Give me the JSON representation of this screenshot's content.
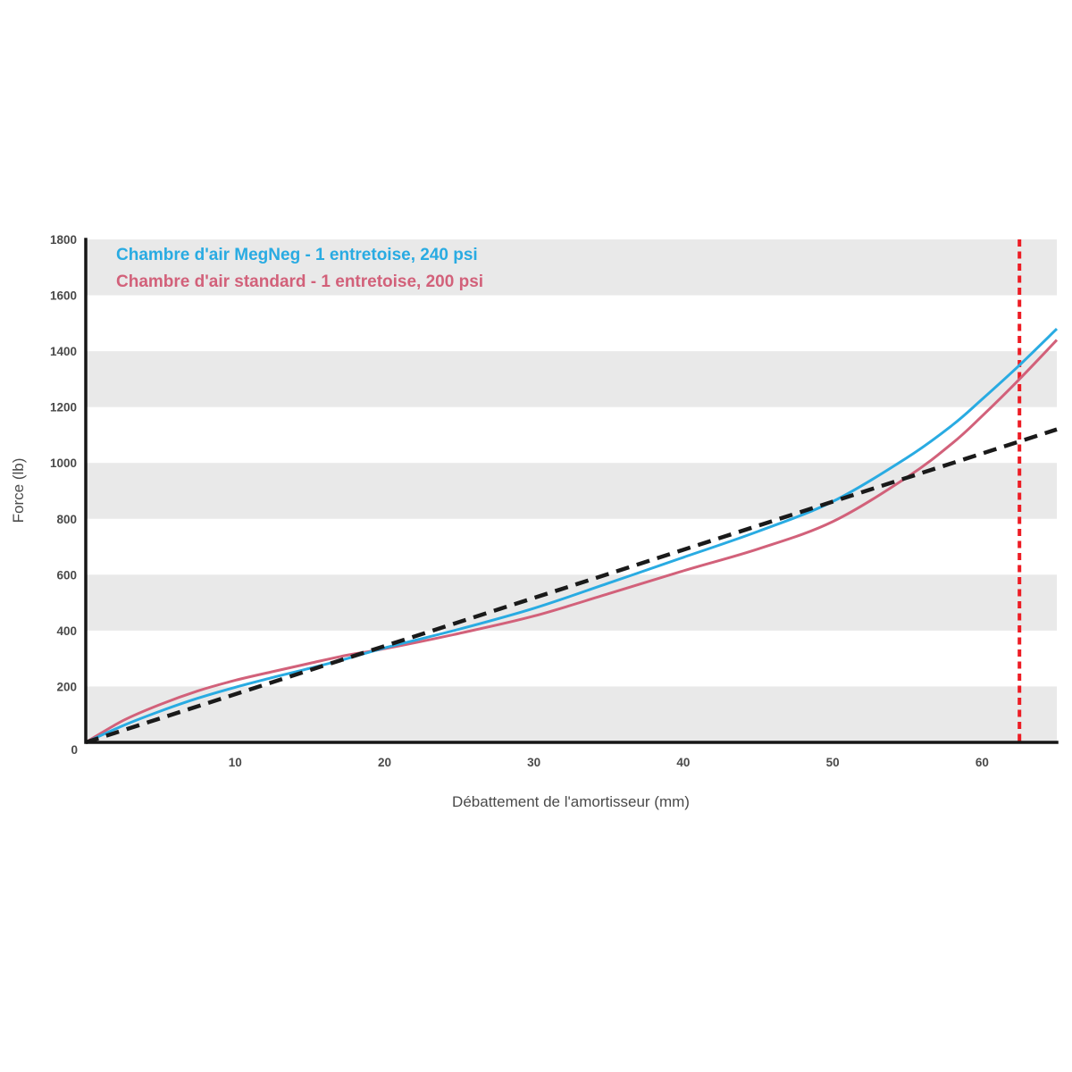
{
  "page": {
    "background": "#ffffff"
  },
  "chart_data": {
    "type": "line",
    "title": "",
    "xlabel": "Débattement de l'amortisseur (mm)",
    "ylabel": "Force (lb)",
    "xlim": [
      0,
      65
    ],
    "ylim": [
      0,
      1800
    ],
    "xticks": [
      10,
      20,
      30,
      40,
      50,
      60
    ],
    "origin_tick_label": "0",
    "yticks": [
      200,
      400,
      600,
      800,
      1000,
      1200,
      1400,
      1600,
      1800
    ],
    "grid": false,
    "legend_position": "top-left-inside",
    "axis_color": "#161616",
    "tick_label_color": "#4a4a4a",
    "background_bands": {
      "color": "#e9e9e9",
      "ranges": [
        [
          0,
          200
        ],
        [
          400,
          600
        ],
        [
          800,
          1000
        ],
        [
          1200,
          1400
        ],
        [
          1600,
          1800
        ]
      ]
    },
    "series": [
      {
        "id": "megneg",
        "name": "Chambre d'air MegNeg - 1 entretoise, 240 psi",
        "color": "#29abe2",
        "style": "solid",
        "width": 3,
        "in_legend": true,
        "z": 2,
        "x": [
          0,
          2.5,
          5,
          7.5,
          10,
          12.5,
          15,
          17.5,
          20,
          25,
          30,
          35,
          40,
          45,
          50,
          55,
          58,
          60,
          62.5,
          65
        ],
        "y": [
          0,
          60,
          112,
          158,
          197,
          232,
          265,
          300,
          338,
          405,
          480,
          570,
          662,
          755,
          862,
          1020,
          1135,
          1228,
          1350,
          1480
        ]
      },
      {
        "id": "standard",
        "name": "Chambre d'air standard - 1 entretoise, 200 psi",
        "color": "#d2617a",
        "style": "solid",
        "width": 3,
        "in_legend": true,
        "z": 1,
        "x": [
          0,
          2.5,
          5,
          7.5,
          10,
          12.5,
          15,
          17.5,
          20,
          25,
          30,
          35,
          40,
          45,
          50,
          55,
          58,
          60,
          62.5,
          65
        ],
        "y": [
          0,
          78,
          136,
          184,
          222,
          253,
          283,
          312,
          335,
          390,
          452,
          532,
          614,
          692,
          790,
          950,
          1070,
          1168,
          1300,
          1440
        ]
      },
      {
        "id": "linear-reference",
        "name": "",
        "color": "#1a1a1a",
        "style": "dashed",
        "width": 4.5,
        "in_legend": false,
        "z": 3,
        "x": [
          0,
          65
        ],
        "y": [
          0,
          1120
        ]
      }
    ],
    "annotations": [
      {
        "id": "bottom-out-marker",
        "type": "vline",
        "x": 62.5,
        "color": "#ed1c24",
        "style": "dashed",
        "width": 4
      }
    ]
  }
}
